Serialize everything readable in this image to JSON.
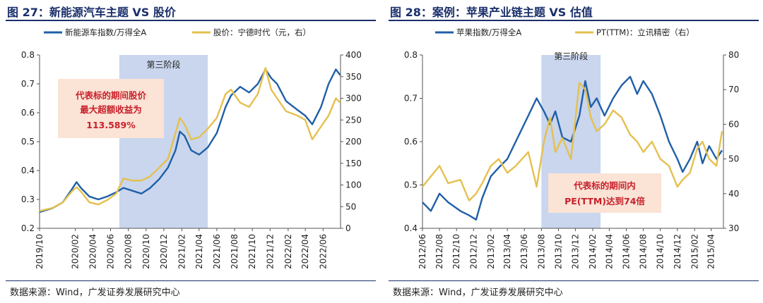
{
  "panels": [
    {
      "title": "图 27：新能源汽车主题 VS 股价",
      "source": "数据来源：Wind，广发证券发展研究中心"
    },
    {
      "title": "图 28：案例：苹果产业链主题 VS 估值",
      "source": "数据来源：Wind，广发证券发展研究中心"
    }
  ],
  "colors": {
    "blue": "#1f5fa8",
    "gold": "#e5c04f",
    "shade": "#c9d6ee",
    "annotation_bg": "#fbe3d6",
    "annotation_text": "#c8202a"
  },
  "chart_data": [
    {
      "type": "line",
      "title": "",
      "categories": [
        "2019/10",
        "2020/02",
        "2020/04",
        "2020/06",
        "2020/08",
        "2020/10",
        "2020/12",
        "2021/02",
        "2021/04",
        "2021/06",
        "2021/08",
        "2021/10",
        "2021/12",
        "2022/02",
        "2022/04",
        "2022/06"
      ],
      "x_range": [
        "2019-10-01",
        "2022-07-31"
      ],
      "y_left": {
        "ylim": [
          0.2,
          0.8
        ],
        "ticks": [
          "0.2",
          "0.3",
          "0.4",
          "0.5",
          "0.6",
          "0.7",
          "0.8"
        ]
      },
      "y_right": {
        "ylim": [
          0,
          400
        ],
        "ticks": [
          "0",
          "50",
          "100",
          "150",
          "200",
          "250",
          "300",
          "350",
          "400"
        ]
      },
      "legend_position": "top-left",
      "shaded_region": {
        "label": "第三阶段",
        "start": "2020-07-01",
        "end": "2021-05-01"
      },
      "annotation": {
        "lines": [
          "代表标的期间股价",
          "最大超额收益为",
          "113.589%"
        ]
      },
      "series": [
        {
          "name": "新能源车指数/万得全A",
          "axis": "left",
          "color": "#1f5fa8",
          "points": [
            [
              "2019-10-01",
              0.256
            ],
            [
              "2019-11-15",
              0.27
            ],
            [
              "2019-12-20",
              0.29
            ],
            [
              "2020-01-20",
              0.335
            ],
            [
              "2020-02-05",
              0.36
            ],
            [
              "2020-02-20",
              0.34
            ],
            [
              "2020-03-20",
              0.31
            ],
            [
              "2020-04-20",
              0.3
            ],
            [
              "2020-05-20",
              0.31
            ],
            [
              "2020-06-20",
              0.325
            ],
            [
              "2020-07-15",
              0.34
            ],
            [
              "2020-08-15",
              0.33
            ],
            [
              "2020-09-15",
              0.32
            ],
            [
              "2020-10-15",
              0.34
            ],
            [
              "2020-11-15",
              0.37
            ],
            [
              "2020-12-15",
              0.41
            ],
            [
              "2021-01-10",
              0.47
            ],
            [
              "2021-01-25",
              0.535
            ],
            [
              "2021-02-10",
              0.52
            ],
            [
              "2021-03-05",
              0.47
            ],
            [
              "2021-04-01",
              0.455
            ],
            [
              "2021-05-01",
              0.48
            ],
            [
              "2021-06-01",
              0.53
            ],
            [
              "2021-07-01",
              0.62
            ],
            [
              "2021-07-20",
              0.66
            ],
            [
              "2021-08-20",
              0.69
            ],
            [
              "2021-09-20",
              0.67
            ],
            [
              "2021-10-20",
              0.7
            ],
            [
              "2021-11-15",
              0.75
            ],
            [
              "2021-12-05",
              0.72
            ],
            [
              "2021-12-25",
              0.7
            ],
            [
              "2022-01-25",
              0.64
            ],
            [
              "2022-03-05",
              0.61
            ],
            [
              "2022-04-01",
              0.59
            ],
            [
              "2022-04-25",
              0.56
            ],
            [
              "2022-05-25",
              0.62
            ],
            [
              "2022-06-20",
              0.7
            ],
            [
              "2022-07-15",
              0.75
            ],
            [
              "2022-07-30",
              0.73
            ]
          ]
        },
        {
          "name": "股价：宁德时代（元，右）",
          "axis": "right",
          "color": "#e5c04f",
          "points": [
            [
              "2019-10-01",
              40
            ],
            [
              "2019-11-15",
              47
            ],
            [
              "2019-12-20",
              60
            ],
            [
              "2020-01-20",
              85
            ],
            [
              "2020-02-05",
              95
            ],
            [
              "2020-02-20",
              85
            ],
            [
              "2020-03-20",
              60
            ],
            [
              "2020-04-20",
              55
            ],
            [
              "2020-05-20",
              65
            ],
            [
              "2020-06-20",
              80
            ],
            [
              "2020-07-15",
              115
            ],
            [
              "2020-08-15",
              110
            ],
            [
              "2020-09-15",
              110
            ],
            [
              "2020-10-15",
              120
            ],
            [
              "2020-11-15",
              140
            ],
            [
              "2020-12-15",
              160
            ],
            [
              "2021-01-10",
              220
            ],
            [
              "2021-01-25",
              255
            ],
            [
              "2021-02-10",
              240
            ],
            [
              "2021-03-05",
              205
            ],
            [
              "2021-04-01",
              210
            ],
            [
              "2021-05-01",
              230
            ],
            [
              "2021-06-01",
              255
            ],
            [
              "2021-07-01",
              310
            ],
            [
              "2021-07-20",
              320
            ],
            [
              "2021-08-20",
              290
            ],
            [
              "2021-09-20",
              280
            ],
            [
              "2021-10-20",
              310
            ],
            [
              "2021-11-15",
              370
            ],
            [
              "2021-12-05",
              320
            ],
            [
              "2021-12-25",
              300
            ],
            [
              "2022-01-25",
              270
            ],
            [
              "2022-03-05",
              260
            ],
            [
              "2022-04-01",
              250
            ],
            [
              "2022-04-25",
              205
            ],
            [
              "2022-05-25",
              235
            ],
            [
              "2022-06-20",
              260
            ],
            [
              "2022-07-15",
              300
            ],
            [
              "2022-07-30",
              290
            ]
          ]
        }
      ]
    },
    {
      "type": "line",
      "title": "",
      "categories": [
        "2012/06",
        "2012/08",
        "2012/10",
        "2012/12",
        "2013/02",
        "2013/04",
        "2013/06",
        "2013/08",
        "2013/10",
        "2013/12",
        "2014/02",
        "2014/04",
        "2014/06",
        "2014/08",
        "2014/10",
        "2014/12",
        "2015/02",
        "2015/04"
      ],
      "x_range": [
        "2012-06-01",
        "2015-05-15"
      ],
      "y_left": {
        "ylim": [
          0.4,
          0.8
        ],
        "ticks": [
          "0.4",
          "0.5",
          "0.6",
          "0.7",
          "0.8"
        ]
      },
      "y_right": {
        "ylim": [
          30,
          80
        ],
        "ticks": [
          "30",
          "40",
          "50",
          "60",
          "70",
          "80"
        ]
      },
      "legend_position": "top-left",
      "shaded_region": {
        "label": "第三阶段",
        "start": "2013-08-01",
        "end": "2014-03-01"
      },
      "annotation": {
        "lines": [
          "代表标的期间内",
          "PE(TTM)达到74倍"
        ]
      },
      "series": [
        {
          "name": "苹果指数/万得全A",
          "axis": "left",
          "color": "#1f5fa8",
          "points": [
            [
              "2012-06-01",
              0.46
            ],
            [
              "2012-07-01",
              0.44
            ],
            [
              "2012-08-01",
              0.48
            ],
            [
              "2012-09-01",
              0.46
            ],
            [
              "2012-10-15",
              0.44
            ],
            [
              "2012-11-15",
              0.43
            ],
            [
              "2012-12-10",
              0.42
            ],
            [
              "2013-01-01",
              0.47
            ],
            [
              "2013-02-01",
              0.52
            ],
            [
              "2013-03-01",
              0.54
            ],
            [
              "2013-04-01",
              0.56
            ],
            [
              "2013-05-01",
              0.6
            ],
            [
              "2013-06-15",
              0.66
            ],
            [
              "2013-07-15",
              0.7
            ],
            [
              "2013-08-10",
              0.67
            ],
            [
              "2013-09-01",
              0.64
            ],
            [
              "2013-09-20",
              0.67
            ],
            [
              "2013-10-15",
              0.61
            ],
            [
              "2013-11-15",
              0.6
            ],
            [
              "2013-12-15",
              0.66
            ],
            [
              "2014-01-05",
              0.74
            ],
            [
              "2014-01-25",
              0.68
            ],
            [
              "2014-02-15",
              0.7
            ],
            [
              "2014-03-15",
              0.66
            ],
            [
              "2014-04-15",
              0.7
            ],
            [
              "2014-05-15",
              0.73
            ],
            [
              "2014-06-15",
              0.75
            ],
            [
              "2014-07-10",
              0.71
            ],
            [
              "2014-08-01",
              0.74
            ],
            [
              "2014-09-01",
              0.71
            ],
            [
              "2014-10-01",
              0.66
            ],
            [
              "2014-11-01",
              0.6
            ],
            [
              "2014-12-01",
              0.56
            ],
            [
              "2014-12-20",
              0.53
            ],
            [
              "2015-01-15",
              0.56
            ],
            [
              "2015-02-10",
              0.6
            ],
            [
              "2015-03-01",
              0.55
            ],
            [
              "2015-03-25",
              0.59
            ],
            [
              "2015-04-20",
              0.56
            ],
            [
              "2015-05-10",
              0.58
            ]
          ]
        },
        {
          "name": "PT(TTM)：立讯精密（右）",
          "axis": "right",
          "color": "#e5c04f",
          "points": [
            [
              "2012-06-01",
              42
            ],
            [
              "2012-07-01",
              45
            ],
            [
              "2012-08-01",
              48
            ],
            [
              "2012-09-01",
              43
            ],
            [
              "2012-10-15",
              44
            ],
            [
              "2012-11-15",
              38
            ],
            [
              "2012-12-10",
              40
            ],
            [
              "2013-01-01",
              43
            ],
            [
              "2013-02-01",
              48
            ],
            [
              "2013-03-01",
              50
            ],
            [
              "2013-04-01",
              46
            ],
            [
              "2013-05-01",
              48
            ],
            [
              "2013-06-15",
              52
            ],
            [
              "2013-07-15",
              42
            ],
            [
              "2013-08-10",
              55
            ],
            [
              "2013-09-01",
              62
            ],
            [
              "2013-09-20",
              52
            ],
            [
              "2013-10-15",
              56
            ],
            [
              "2013-11-15",
              50
            ],
            [
              "2013-12-15",
              72
            ],
            [
              "2014-01-05",
              70
            ],
            [
              "2014-01-25",
              62
            ],
            [
              "2014-02-15",
              58
            ],
            [
              "2014-03-15",
              60
            ],
            [
              "2014-04-15",
              64
            ],
            [
              "2014-05-15",
              62
            ],
            [
              "2014-06-15",
              57
            ],
            [
              "2014-07-10",
              55
            ],
            [
              "2014-08-01",
              52
            ],
            [
              "2014-09-01",
              55
            ],
            [
              "2014-10-01",
              50
            ],
            [
              "2014-11-01",
              48
            ],
            [
              "2014-12-01",
              42
            ],
            [
              "2014-12-20",
              44
            ],
            [
              "2015-01-15",
              46
            ],
            [
              "2015-02-10",
              53
            ],
            [
              "2015-03-01",
              55
            ],
            [
              "2015-03-25",
              50
            ],
            [
              "2015-04-20",
              48
            ],
            [
              "2015-05-10",
              58
            ]
          ]
        }
      ]
    }
  ]
}
